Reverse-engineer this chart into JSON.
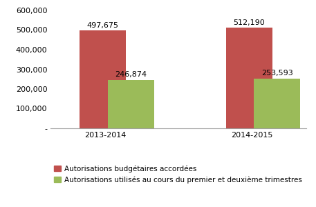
{
  "categories": [
    "2013-2014",
    "2014-2015"
  ],
  "series": [
    {
      "name": "Autorisations budgétaires accordées",
      "values": [
        497675,
        512190
      ],
      "color": "#c0504d"
    },
    {
      "name": "Autorisations utilisés au cours du premier et deuxième trimestres",
      "values": [
        246874,
        253593
      ],
      "color": "#9bbb59"
    }
  ],
  "ylim": [
    0,
    600000
  ],
  "yticks": [
    0,
    100000,
    200000,
    300000,
    400000,
    500000,
    600000
  ],
  "ytick_labels": [
    "-",
    "100,000",
    "200,000",
    "300,000",
    "400,000",
    "500,000",
    "600,000"
  ],
  "bar_width": 0.38,
  "group_positions": [
    0.5,
    1.7
  ],
  "bar_gap": 0.04,
  "label_fontsize": 8,
  "tick_fontsize": 8,
  "legend_fontsize": 7.5,
  "background_color": "#ffffff",
  "spine_color": "#a0a0a0"
}
